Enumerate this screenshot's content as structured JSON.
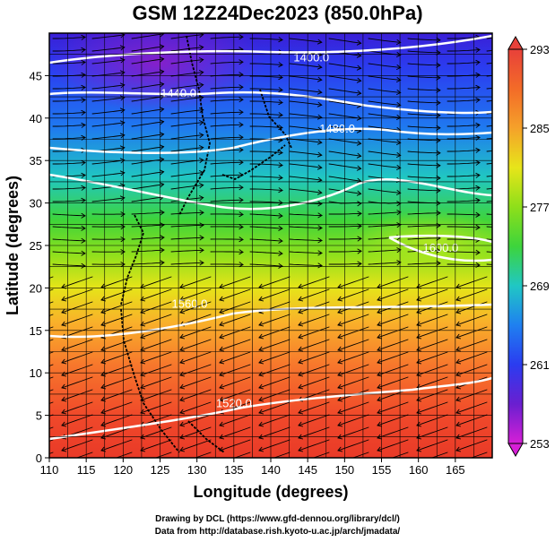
{
  "title": "GSM 12Z24Dec2023 (850.0hPa)",
  "xlabel": "Longitude (degrees)",
  "ylabel": "Latitude  (degrees)",
  "x_ticks": [
    "110",
    "115",
    "120",
    "125",
    "130",
    "135",
    "140",
    "145",
    "150",
    "155",
    "160",
    "165"
  ],
  "y_ticks": [
    "0",
    "5",
    "10",
    "15",
    "20",
    "25",
    "30",
    "35",
    "40",
    "45"
  ],
  "colorbar": {
    "labels": [
      "293",
      "285",
      "277",
      "269",
      "261",
      "253"
    ],
    "values": [
      293,
      285,
      277,
      269,
      261,
      253
    ],
    "min": 253,
    "max": 293
  },
  "map": {
    "lon_range": [
      110,
      170
    ],
    "lat_range": [
      0,
      50
    ],
    "contours": [
      {
        "label": "1400.0",
        "lon": 145.5,
        "lat": 47.2
      },
      {
        "label": "1440.0",
        "lon": 127.5,
        "lat": 43.0
      },
      {
        "label": "1480.0",
        "lon": 149.0,
        "lat": 38.8
      },
      {
        "label": "1600.0",
        "lon": 163.0,
        "lat": 24.8
      },
      {
        "label": "1560.0",
        "lon": 129.0,
        "lat": 18.2
      },
      {
        "label": "1520.0",
        "lon": 135.0,
        "lat": 6.5
      }
    ]
  },
  "credits": {
    "line1": "Drawing by DCL (https://www.gfd-dennou.org/library/dcl/)",
    "line2": "Data from http://database.rish.kyoto-u.ac.jp/arch/jmadata/"
  }
}
